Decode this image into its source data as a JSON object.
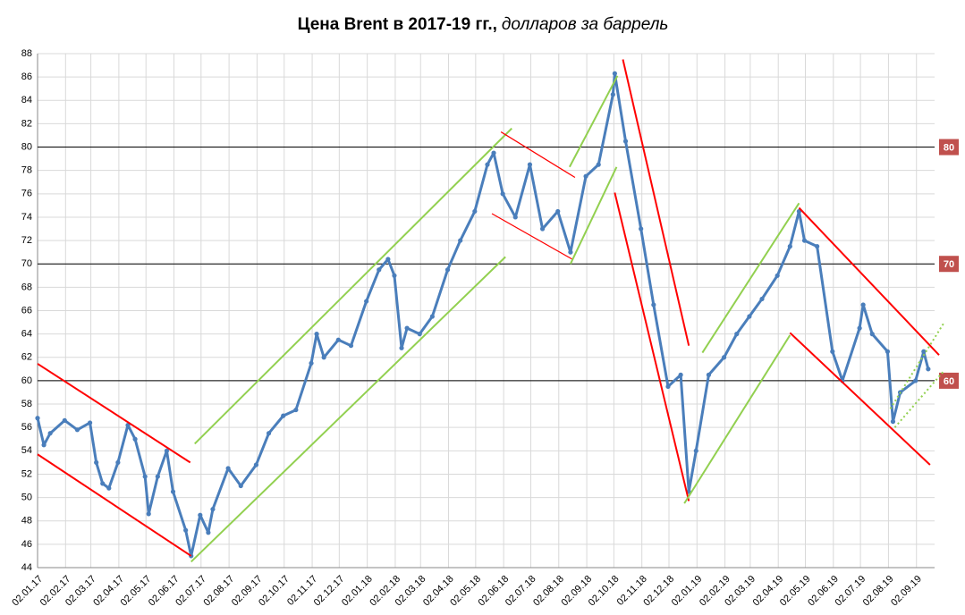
{
  "chart_data": {
    "type": "line",
    "title": "Цена Brent в 2017-19 гг.,",
    "subtitle": "долларов за баррель",
    "x": [
      "02.01.17",
      "09.01.17",
      "16.01.17",
      "01.02.17",
      "15.02.17",
      "01.03.17",
      "08.03.17",
      "15.03.17",
      "22.03.17",
      "01.04.17",
      "12.04.17",
      "20.04.17",
      "01.05.17",
      "05.05.17",
      "15.05.17",
      "25.05.17",
      "01.06.17",
      "15.06.17",
      "21.06.17",
      "01.07.17",
      "10.07.17",
      "15.07.17",
      "01.08.17",
      "15.08.17",
      "01.09.17",
      "15.09.17",
      "01.10.17",
      "15.10.17",
      "01.11.17",
      "07.11.17",
      "15.11.17",
      "01.12.17",
      "15.12.17",
      "01.01.18",
      "15.01.18",
      "25.01.18",
      "01.02.18",
      "09.02.18",
      "15.02.18",
      "01.03.18",
      "15.03.18",
      "01.04.18",
      "15.04.18",
      "01.05.18",
      "15.05.18",
      "22.05.18",
      "01.06.18",
      "15.06.18",
      "01.07.18",
      "15.07.18",
      "01.08.18",
      "15.08.18",
      "01.09.18",
      "15.09.18",
      "01.10.18",
      "03.10.18",
      "15.10.18",
      "01.11.18",
      "15.11.18",
      "01.12.18",
      "15.12.18",
      "24.12.18",
      "01.01.19",
      "15.01.19",
      "01.02.19",
      "15.02.19",
      "01.03.19",
      "15.03.19",
      "01.04.19",
      "15.04.19",
      "25.04.19",
      "01.05.19",
      "15.05.19",
      "01.06.19",
      "12.06.19",
      "01.07.19",
      "05.07.19",
      "15.07.19",
      "01.08.19",
      "07.08.19",
      "15.08.19",
      "01.09.19",
      "10.09.19",
      "15.09.19"
    ],
    "values": [
      56.8,
      54.5,
      55.5,
      56.6,
      55.8,
      56.4,
      53.0,
      51.2,
      50.8,
      53.0,
      56.2,
      55.0,
      51.8,
      48.6,
      51.8,
      54.0,
      50.5,
      47.2,
      45.0,
      48.5,
      47.0,
      49.0,
      52.5,
      51.0,
      52.8,
      55.5,
      57.0,
      57.5,
      61.5,
      64.0,
      62.0,
      63.5,
      63.0,
      66.8,
      69.5,
      70.4,
      69.0,
      62.8,
      64.5,
      64.0,
      65.5,
      69.5,
      72.0,
      74.5,
      78.5,
      79.5,
      76.0,
      74.0,
      78.5,
      73.0,
      74.5,
      71.0,
      77.5,
      78.5,
      84.5,
      86.3,
      80.5,
      73.0,
      66.5,
      59.5,
      60.5,
      50.5,
      54.0,
      60.5,
      62.0,
      64.0,
      65.5,
      67.0,
      69.0,
      71.5,
      74.5,
      72.0,
      71.5,
      62.5,
      60.0,
      64.5,
      66.5,
      64.0,
      62.5,
      56.5,
      59.0,
      60.0,
      62.5,
      61.0
    ],
    "color": "#4a7ebb",
    "xlim": [
      "02.01.17",
      "02.10.19"
    ],
    "xticks": [
      "02.01.17",
      "02.02.17",
      "02.03.17",
      "02.04.17",
      "02.05.17",
      "02.06.17",
      "02.07.17",
      "02.08.17",
      "02.09.17",
      "02.10.17",
      "02.11.17",
      "02.12.17",
      "02.01.18",
      "02.02.18",
      "02.03.18",
      "02.04.18",
      "02.05.18",
      "02.06.18",
      "02.07.18",
      "02.08.18",
      "02.09.18",
      "02.10.18",
      "02.11.18",
      "02.12.18",
      "02.01.19",
      "02.02.19",
      "02.03.19",
      "02.04.19",
      "02.05.19",
      "02.06.19",
      "02.07.19",
      "02.08.19",
      "02.09.19"
    ],
    "ylim": [
      44,
      88
    ],
    "yticks": [
      44,
      46,
      48,
      50,
      52,
      54,
      56,
      58,
      60,
      62,
      64,
      66,
      68,
      70,
      72,
      74,
      76,
      78,
      80,
      82,
      84,
      86,
      88
    ],
    "grid": true,
    "reference_lines": {
      "values": [
        80,
        70,
        60
      ],
      "color": "#000000",
      "label_color": "#c0504d"
    },
    "trend_lines": [
      {
        "color": "#ff0000",
        "x": [
          "02.01.17",
          "20.06.17"
        ],
        "values": [
          61.45,
          53.0
        ]
      },
      {
        "color": "#ff0000",
        "x": [
          "02.01.17",
          "21.06.17"
        ],
        "values": [
          53.7,
          45.0
        ]
      },
      {
        "color": "#92d050",
        "x": [
          "25.06.17",
          "11.06.18"
        ],
        "values": [
          54.6,
          81.6
        ]
      },
      {
        "color": "#92d050",
        "x": [
          "21.06.17",
          "04.06.18"
        ],
        "values": [
          44.5,
          70.6
        ]
      },
      {
        "color": "#ff0000",
        "x": [
          "30.05.18",
          "20.08.18"
        ],
        "values": [
          81.3,
          77.4
        ],
        "thin": true
      },
      {
        "color": "#ff0000",
        "x": [
          "20.05.18",
          "17.08.18"
        ],
        "values": [
          74.3,
          70.4
        ],
        "thin": true
      },
      {
        "color": "#92d050",
        "x": [
          "14.08.18",
          "06.10.18"
        ],
        "values": [
          78.3,
          86.1
        ]
      },
      {
        "color": "#92d050",
        "x": [
          "15.08.18",
          "05.10.18"
        ],
        "values": [
          70.0,
          78.3
        ]
      },
      {
        "color": "#ff0000",
        "x": [
          "12.10.18",
          "24.12.18"
        ],
        "values": [
          87.5,
          63.0
        ]
      },
      {
        "color": "#ff0000",
        "x": [
          "03.10.18",
          "24.12.18"
        ],
        "values": [
          76.1,
          49.7
        ]
      },
      {
        "color": "#92d050",
        "x": [
          "08.01.19",
          "25.04.19"
        ],
        "values": [
          62.4,
          75.2
        ]
      },
      {
        "color": "#92d050",
        "x": [
          "19.12.18",
          "15.04.19"
        ],
        "values": [
          49.5,
          63.9
        ]
      },
      {
        "color": "#ff0000",
        "x": [
          "25.04.19",
          "27.09.19"
        ],
        "values": [
          74.8,
          62.2
        ]
      },
      {
        "color": "#ff0000",
        "x": [
          "15.04.19",
          "17.09.19"
        ],
        "values": [
          64.1,
          52.8
        ]
      },
      {
        "color": "#92d050",
        "x": [
          "04.08.19",
          "02.10.19"
        ],
        "values": [
          57.6,
          64.9
        ],
        "dotted": true
      },
      {
        "color": "#92d050",
        "x": [
          "09.08.19",
          "02.10.19"
        ],
        "values": [
          56.0,
          60.8
        ],
        "dotted": true
      }
    ]
  }
}
